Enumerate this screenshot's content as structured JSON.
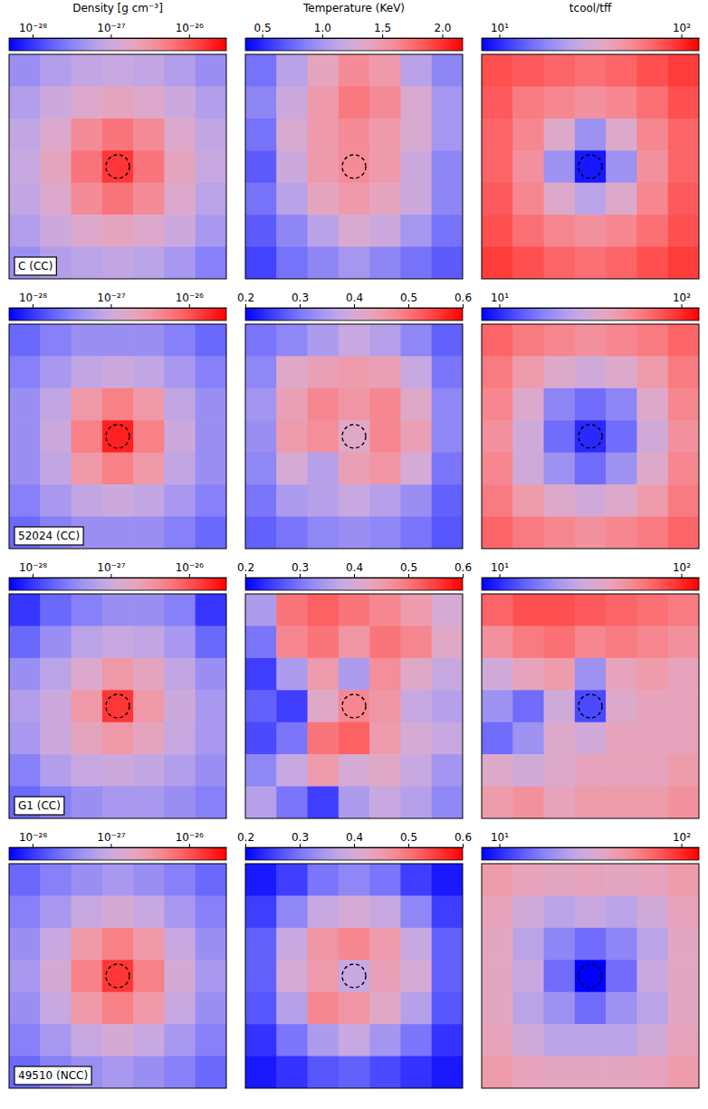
{
  "chart_data": [
    {
      "type": "heatmap",
      "label": "C (CC)",
      "log": true,
      "colorbar": {
        "title": "Density [g cm⁻³]",
        "range": [
          5e-29,
          3e-26
        ],
        "ticks": [
          {
            "value": 1e-28,
            "label": "10⁻²⁸"
          },
          {
            "value": 1e-27,
            "label": "10⁻²⁷"
          },
          {
            "value": 1e-26,
            "label": "10⁻²⁶"
          }
        ]
      },
      "cells": [
        [
          4e-28,
          6e-28,
          8e-28,
          9e-28,
          8e-28,
          6e-28,
          4e-28
        ],
        [
          6e-28,
          1e-27,
          1.5e-27,
          2e-27,
          1.5e-27,
          1e-27,
          6e-28
        ],
        [
          8e-28,
          1.5e-27,
          4e-27,
          6e-27,
          4e-27,
          1.5e-27,
          8e-28
        ],
        [
          9e-28,
          2e-27,
          6e-27,
          1.5e-26,
          6e-27,
          2e-27,
          9e-28
        ],
        [
          8e-28,
          1.5e-27,
          4e-27,
          6e-27,
          4e-27,
          1.5e-27,
          7e-28
        ],
        [
          6e-28,
          1e-27,
          1.5e-27,
          2e-27,
          1.5e-27,
          1e-27,
          5e-28
        ],
        [
          4e-28,
          6e-28,
          7e-28,
          8e-28,
          7e-28,
          5e-28,
          3e-28
        ]
      ]
    },
    {
      "type": "heatmap",
      "colorbar": {
        "title": "Temperature (KeV)",
        "range": [
          0.36,
          2.17
        ],
        "ticks": [
          0.5,
          {
            "value": 1.0,
            "label": "1.0"
          },
          1.5,
          {
            "value": 2.0,
            "label": "2.0"
          }
        ]
      },
      "cells": [
        [
          0.8,
          1.1,
          1.4,
          1.6,
          1.5,
          1.1,
          0.9
        ],
        [
          0.9,
          1.2,
          1.5,
          1.7,
          1.6,
          1.3,
          1.0
        ],
        [
          0.8,
          1.3,
          1.5,
          1.6,
          1.5,
          1.3,
          1.0
        ],
        [
          0.7,
          1.2,
          1.5,
          1.6,
          1.5,
          1.2,
          0.9
        ],
        [
          0.8,
          1.1,
          1.4,
          1.5,
          1.4,
          1.2,
          0.9
        ],
        [
          0.7,
          0.9,
          1.1,
          1.3,
          1.2,
          1.0,
          0.8
        ],
        [
          0.6,
          0.8,
          0.9,
          1.0,
          0.9,
          0.8,
          0.7
        ]
      ]
    },
    {
      "type": "heatmap",
      "log": true,
      "colorbar": {
        "title": "tcool/tff",
        "range": [
          8,
          125
        ],
        "ticks": [
          {
            "value": 10,
            "label": "10¹"
          },
          {
            "value": 100,
            "label": "10²"
          }
        ]
      },
      "cells": [
        [
          80,
          75,
          70,
          65,
          70,
          80,
          90
        ],
        [
          75,
          60,
          55,
          50,
          55,
          65,
          80
        ],
        [
          70,
          55,
          35,
          20,
          35,
          55,
          70
        ],
        [
          70,
          50,
          20,
          9,
          20,
          50,
          70
        ],
        [
          75,
          55,
          35,
          25,
          35,
          55,
          75
        ],
        [
          80,
          65,
          55,
          50,
          55,
          65,
          80
        ],
        [
          90,
          80,
          70,
          65,
          70,
          80,
          90
        ]
      ]
    },
    {
      "type": "heatmap",
      "label": "52024 (CC)",
      "log": true,
      "colorbar": {
        "range": [
          5e-29,
          3e-26
        ],
        "ticks": [
          {
            "value": 1e-28,
            "label": "10⁻²⁸"
          },
          {
            "value": 1e-27,
            "label": "10⁻²⁷"
          },
          {
            "value": 1e-26,
            "label": "10⁻²⁶"
          }
        ]
      },
      "cells": [
        [
          2e-28,
          3e-28,
          4e-28,
          4e-28,
          4e-28,
          3e-28,
          2e-28
        ],
        [
          3e-28,
          5e-28,
          8e-28,
          1e-27,
          8e-28,
          5e-28,
          3e-28
        ],
        [
          4e-28,
          8e-28,
          3e-27,
          5e-27,
          3e-27,
          8e-28,
          4e-28
        ],
        [
          4e-28,
          1e-27,
          5e-27,
          2e-26,
          5e-27,
          1e-27,
          4e-28
        ],
        [
          4e-28,
          8e-28,
          3e-27,
          5e-27,
          3e-27,
          8e-28,
          4e-28
        ],
        [
          3e-28,
          5e-28,
          8e-28,
          1e-27,
          8e-28,
          5e-28,
          3e-28
        ],
        [
          2e-28,
          3e-28,
          4e-28,
          4e-28,
          4e-28,
          3e-28,
          2e-28
        ]
      ]
    },
    {
      "type": "heatmap",
      "colorbar": {
        "range": [
          0.2,
          0.6
        ],
        "ticks": [
          0.2,
          0.3,
          0.4,
          0.5,
          0.6
        ]
      },
      "cells": [
        [
          0.3,
          0.32,
          0.35,
          0.38,
          0.36,
          0.32,
          0.28
        ],
        [
          0.32,
          0.42,
          0.44,
          0.45,
          0.44,
          0.38,
          0.3
        ],
        [
          0.34,
          0.44,
          0.48,
          0.46,
          0.48,
          0.42,
          0.32
        ],
        [
          0.33,
          0.45,
          0.47,
          0.42,
          0.48,
          0.44,
          0.32
        ],
        [
          0.32,
          0.4,
          0.36,
          0.44,
          0.46,
          0.4,
          0.3
        ],
        [
          0.3,
          0.35,
          0.36,
          0.38,
          0.36,
          0.33,
          0.28
        ],
        [
          0.28,
          0.3,
          0.32,
          0.33,
          0.32,
          0.3,
          0.27
        ]
      ]
    },
    {
      "type": "heatmap",
      "log": true,
      "colorbar": {
        "range": [
          8,
          125
        ],
        "ticks": [
          {
            "value": 10,
            "label": "10¹"
          },
          {
            "value": 100,
            "label": "10²"
          }
        ]
      },
      "cells": [
        [
          70,
          60,
          55,
          50,
          55,
          60,
          70
        ],
        [
          60,
          45,
          35,
          30,
          35,
          45,
          60
        ],
        [
          55,
          35,
          18,
          15,
          18,
          35,
          55
        ],
        [
          50,
          30,
          15,
          10,
          15,
          30,
          50
        ],
        [
          55,
          30,
          20,
          15,
          20,
          35,
          55
        ],
        [
          60,
          45,
          35,
          30,
          35,
          45,
          60
        ],
        [
          70,
          60,
          55,
          50,
          55,
          60,
          70
        ]
      ]
    },
    {
      "type": "heatmap",
      "label": "G1 (CC)",
      "log": true,
      "colorbar": {
        "range": [
          5e-29,
          3e-26
        ],
        "ticks": [
          {
            "value": 1e-28,
            "label": "10⁻²⁸"
          },
          {
            "value": 1e-27,
            "label": "10⁻²⁷"
          },
          {
            "value": 1e-26,
            "label": "10⁻²⁶"
          }
        ]
      },
      "cells": [
        [
          1e-28,
          2e-28,
          3e-28,
          4e-28,
          4e-28,
          3e-28,
          1e-28
        ],
        [
          2e-28,
          4e-28,
          7e-28,
          9e-28,
          8e-28,
          5e-28,
          2e-28
        ],
        [
          4e-28,
          7e-28,
          1.5e-27,
          3e-27,
          2e-27,
          8e-28,
          4e-28
        ],
        [
          6e-28,
          1e-27,
          3e-27,
          1.5e-26,
          3e-27,
          1e-27,
          5e-28
        ],
        [
          5e-28,
          1e-27,
          2e-27,
          3e-27,
          2e-27,
          9e-28,
          5e-28
        ],
        [
          3e-28,
          6e-28,
          9e-28,
          1e-27,
          8e-28,
          6e-28,
          4e-28
        ],
        [
          2e-28,
          3e-28,
          4e-28,
          5e-28,
          5e-28,
          4e-28,
          3e-28
        ]
      ]
    },
    {
      "type": "heatmap",
      "colorbar": {
        "range": [
          0.2,
          0.6
        ],
        "ticks": [
          0.2,
          0.3,
          0.4,
          0.5,
          0.6
        ]
      },
      "cells": [
        [
          0.35,
          0.5,
          0.52,
          0.5,
          0.48,
          0.45,
          0.4
        ],
        [
          0.3,
          0.48,
          0.5,
          0.46,
          0.5,
          0.48,
          0.42
        ],
        [
          0.25,
          0.35,
          0.45,
          0.35,
          0.47,
          0.42,
          0.38
        ],
        [
          0.28,
          0.25,
          0.42,
          0.48,
          0.46,
          0.38,
          0.36
        ],
        [
          0.26,
          0.3,
          0.5,
          0.52,
          0.45,
          0.4,
          0.38
        ],
        [
          0.32,
          0.38,
          0.45,
          0.4,
          0.42,
          0.38,
          0.34
        ],
        [
          0.36,
          0.3,
          0.25,
          0.35,
          0.38,
          0.36,
          0.32
        ]
      ]
    },
    {
      "type": "heatmap",
      "log": true,
      "colorbar": {
        "range": [
          8,
          125
        ],
        "ticks": [
          {
            "value": 10,
            "label": "10¹"
          },
          {
            "value": 100,
            "label": "10²"
          }
        ]
      },
      "cells": [
        [
          70,
          80,
          80,
          75,
          70,
          65,
          60
        ],
        [
          50,
          60,
          65,
          55,
          60,
          55,
          50
        ],
        [
          30,
          40,
          45,
          20,
          40,
          45,
          40
        ],
        [
          20,
          15,
          30,
          12,
          35,
          40,
          40
        ],
        [
          15,
          20,
          35,
          30,
          40,
          40,
          40
        ],
        [
          35,
          30,
          35,
          40,
          40,
          40,
          45
        ],
        [
          45,
          50,
          40,
          45,
          45,
          45,
          50
        ]
      ]
    },
    {
      "type": "heatmap",
      "label": "49510 (NCC)",
      "log": true,
      "colorbar": {
        "range": [
          5e-29,
          3e-26
        ],
        "ticks": [
          {
            "value": 1e-28,
            "label": "10⁻²⁸"
          },
          {
            "value": 1e-27,
            "label": "10⁻²⁷"
          },
          {
            "value": 1e-26,
            "label": "10⁻²⁶"
          }
        ]
      },
      "cells": [
        [
          2e-28,
          3e-28,
          4e-28,
          5e-28,
          4e-28,
          3e-28,
          2e-28
        ],
        [
          3e-28,
          5e-28,
          9e-28,
          1.2e-27,
          9e-28,
          5e-28,
          3e-28
        ],
        [
          4e-28,
          9e-28,
          3e-27,
          5e-27,
          3e-27,
          9e-28,
          4e-28
        ],
        [
          5e-28,
          1.2e-27,
          5e-27,
          1.5e-26,
          5e-27,
          1.2e-27,
          5e-28
        ],
        [
          4e-28,
          9e-28,
          3e-27,
          5e-27,
          3e-27,
          9e-28,
          4e-28
        ],
        [
          3e-28,
          5e-28,
          9e-28,
          1.2e-27,
          9e-28,
          5e-28,
          3e-28
        ],
        [
          2e-28,
          3e-28,
          4e-28,
          5e-28,
          4e-28,
          3e-28,
          2e-28
        ]
      ]
    },
    {
      "type": "heatmap",
      "colorbar": {
        "range": [
          0.2,
          0.6
        ],
        "ticks": [
          0.2,
          0.3,
          0.4,
          0.5,
          0.6
        ]
      },
      "cells": [
        [
          0.22,
          0.25,
          0.3,
          0.32,
          0.3,
          0.25,
          0.22
        ],
        [
          0.25,
          0.32,
          0.38,
          0.4,
          0.38,
          0.32,
          0.25
        ],
        [
          0.28,
          0.38,
          0.46,
          0.48,
          0.45,
          0.38,
          0.28
        ],
        [
          0.28,
          0.4,
          0.45,
          0.38,
          0.44,
          0.4,
          0.28
        ],
        [
          0.27,
          0.36,
          0.48,
          0.46,
          0.42,
          0.36,
          0.27
        ],
        [
          0.24,
          0.3,
          0.35,
          0.38,
          0.34,
          0.3,
          0.24
        ],
        [
          0.22,
          0.24,
          0.27,
          0.28,
          0.26,
          0.24,
          0.22
        ]
      ]
    },
    {
      "type": "heatmap",
      "log": true,
      "colorbar": {
        "range": [
          8,
          125
        ],
        "ticks": [
          {
            "value": 10,
            "label": "10¹"
          },
          {
            "value": 100,
            "label": "10²"
          }
        ]
      },
      "cells": [
        [
          45,
          40,
          38,
          40,
          38,
          40,
          45
        ],
        [
          40,
          30,
          25,
          28,
          25,
          30,
          40
        ],
        [
          38,
          25,
          18,
          15,
          18,
          25,
          38
        ],
        [
          38,
          28,
          15,
          8,
          15,
          28,
          38
        ],
        [
          38,
          25,
          20,
          15,
          20,
          25,
          38
        ],
        [
          40,
          30,
          25,
          25,
          25,
          30,
          40
        ],
        [
          45,
          40,
          38,
          38,
          38,
          40,
          45
        ]
      ]
    }
  ]
}
